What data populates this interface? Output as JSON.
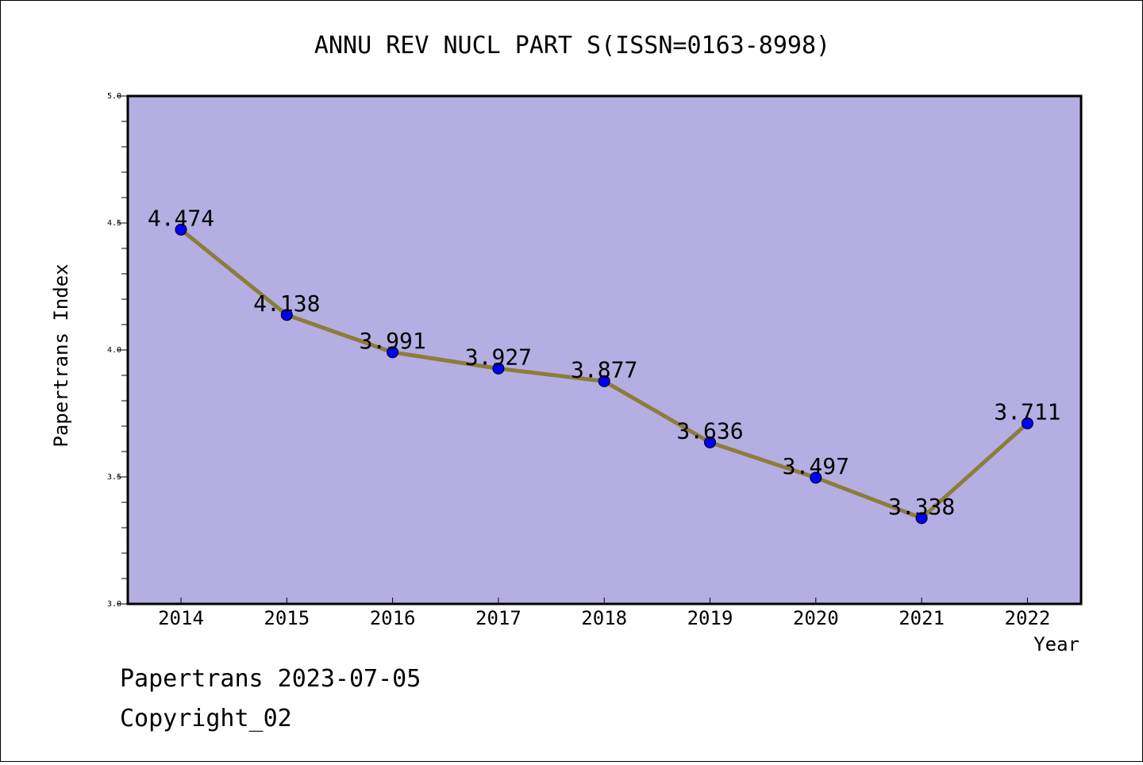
{
  "chart_data": {
    "type": "line",
    "title": "ANNU REV NUCL PART S(ISSN=0163-8998)",
    "xlabel": "Year",
    "ylabel": "Papertrans Index",
    "categories": [
      "2014",
      "2015",
      "2016",
      "2017",
      "2018",
      "2019",
      "2020",
      "2021",
      "2022"
    ],
    "series": [
      {
        "values": [
          4.474,
          4.138,
          3.991,
          3.927,
          3.877,
          3.636,
          3.497,
          3.338,
          3.711
        ]
      }
    ],
    "data_labels": [
      "4.474",
      "4.138",
      "3.991",
      "3.927",
      "3.877",
      "3.636",
      "3.497",
      "3.338",
      "3.711"
    ],
    "ylim": [
      3.0,
      5.0
    ],
    "yticks": [
      "3.0",
      "3.5",
      "4.0",
      "4.5",
      "5.0"
    ],
    "ytick_values": [
      3.0,
      3.5,
      4.0,
      4.5,
      5.0
    ],
    "grid": false,
    "colors": {
      "plot_background": "#b4aee2",
      "line": "#8b7d3a",
      "marker": "#0000ff"
    }
  },
  "footer": {
    "line1": "Papertrans 2023-07-05",
    "line2": "Copyright_02"
  }
}
